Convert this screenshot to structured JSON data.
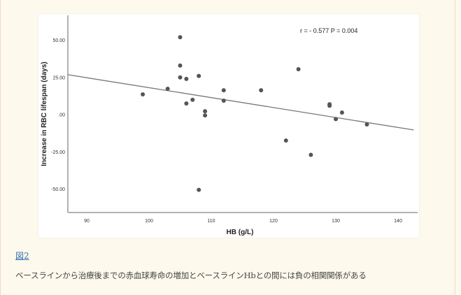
{
  "figure_link": "図2",
  "caption": "ベースラインから治療後までの赤血球寿命の増加とベースラインHbとの間には負の相関関係がある",
  "chart_data": {
    "type": "scatter",
    "title": "",
    "xlabel": "HB (g/L)",
    "ylabel": "Increase in RBC lifespan (days)",
    "annotation": "r = - 0.577 P = 0.004",
    "xlim": [
      87,
      142.5
    ],
    "ylim": [
      -65,
      63
    ],
    "xticks": [
      90,
      100,
      110,
      120,
      130,
      140
    ],
    "xtick_labels": [
      "90",
      "100",
      "110",
      "120",
      "130",
      "140"
    ],
    "yticks": [
      50,
      25,
      0,
      -25,
      -50
    ],
    "ytick_labels": [
      "50.00",
      "25.00",
      ".00",
      "-25.00",
      "-50.00"
    ],
    "grid": false,
    "point_color": "#555555",
    "line_color": "#777777",
    "points": [
      [
        99,
        13.6
      ],
      [
        103,
        17.4
      ],
      [
        105,
        52
      ],
      [
        105,
        33
      ],
      [
        105,
        25
      ],
      [
        106,
        24
      ],
      [
        106,
        7.5
      ],
      [
        107,
        10
      ],
      [
        108,
        26
      ],
      [
        109,
        2.3
      ],
      [
        109,
        -0.5
      ],
      [
        112,
        16.4
      ],
      [
        112,
        9.4
      ],
      [
        118,
        16.4
      ],
      [
        124,
        30.5
      ],
      [
        129,
        7
      ],
      [
        129,
        6
      ],
      [
        130,
        -3
      ],
      [
        131,
        1.4
      ],
      [
        122,
        -17.4
      ],
      [
        126,
        -27
      ],
      [
        135,
        -6.6
      ],
      [
        108,
        -50.5
      ]
    ],
    "fit_line": {
      "slope": -0.668,
      "intercept_at_x90": 24.8
    }
  }
}
